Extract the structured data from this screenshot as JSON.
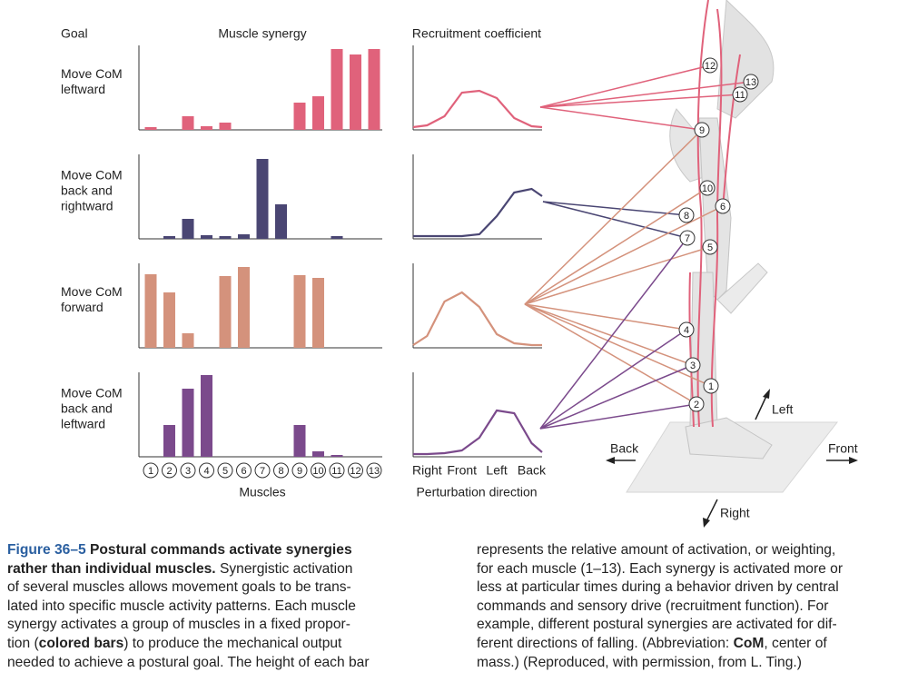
{
  "header": {
    "goal": "Goal",
    "synergy": "Muscle synergy"
  },
  "chart_data": [
    {
      "type": "bar",
      "title": [
        "Move CoM",
        "leftward"
      ],
      "color": "#e0627b",
      "values": [
        3,
        0,
        15,
        4,
        8,
        0,
        0,
        0,
        30,
        37,
        89,
        83,
        89
      ]
    },
    {
      "type": "bar",
      "title": [
        "Move CoM",
        "back and",
        "rightward"
      ],
      "color": "#4a4673",
      "values": [
        0,
        3,
        22,
        4,
        3,
        5,
        88,
        38,
        0,
        0,
        3,
        0,
        0
      ]
    },
    {
      "type": "bar",
      "title": [
        "Move CoM",
        "forward"
      ],
      "color": "#d4927c",
      "values": [
        81,
        61,
        16,
        0,
        79,
        89,
        0,
        0,
        80,
        77,
        0,
        0,
        0
      ]
    },
    {
      "type": "bar",
      "title": [
        "Move CoM",
        "back and",
        "leftward"
      ],
      "color": "#7b4a8c",
      "values": [
        0,
        35,
        75,
        90,
        0,
        0,
        0,
        0,
        35,
        6,
        2,
        0,
        0
      ],
      "categories": [
        "1",
        "2",
        "3",
        "4",
        "5",
        "6",
        "7",
        "8",
        "9",
        "10",
        "11",
        "12",
        "13"
      ],
      "xlabel": "Muscles"
    },
    {
      "type": "line",
      "title": "Recruitment coefficient",
      "xlabel": "Perturbation direction",
      "x": [
        -0.4,
        0,
        0.5,
        1,
        1.5,
        2,
        2.5,
        3,
        3.3
      ],
      "xlim": [
        -0.4,
        3.3
      ],
      "xticks": [
        {
          "value": 0,
          "label": "Right"
        },
        {
          "value": 1,
          "label": "Front"
        },
        {
          "value": 2,
          "label": "Left"
        },
        {
          "value": 3,
          "label": "Back"
        }
      ],
      "series": [
        {
          "color": "#e0627b",
          "values": [
            0,
            2,
            12,
            38,
            40,
            32,
            10,
            1,
            0
          ]
        },
        {
          "color": "#4a4673",
          "values": [
            0,
            0,
            0,
            0,
            2,
            22,
            48,
            52,
            44
          ]
        },
        {
          "color": "#d4927c",
          "values": [
            0,
            10,
            48,
            58,
            42,
            12,
            2,
            0,
            0
          ]
        },
        {
          "color": "#7b4a8c",
          "values": [
            0,
            0,
            1,
            4,
            18,
            48,
            45,
            12,
            2
          ]
        }
      ]
    }
  ],
  "skeleton": {
    "labels": [
      "12",
      "13",
      "11",
      "9",
      "10",
      "6",
      "8",
      "7",
      "5",
      "4",
      "3",
      "1",
      "2"
    ],
    "left": "Left",
    "back": "Back",
    "front": "Front",
    "right": "Right"
  },
  "caption": {
    "columns": [
      [
        [
          {
            "t": "Figure 36–5",
            "s": "figure-label"
          },
          {
            "t": " Postural commands activate synergies",
            "s": "bold"
          }
        ],
        [
          {
            "t": "rather than individual muscles.",
            "s": "bold"
          },
          {
            "t": " Synergistic activation"
          }
        ],
        [
          {
            "t": "of several muscles allows movement goals to be trans-"
          }
        ],
        [
          {
            "t": "lated into specific muscle activity patterns. Each muscle"
          }
        ],
        [
          {
            "t": "synergy activates a group of muscles in a fixed propor-"
          }
        ],
        [
          {
            "t": "tion ("
          },
          {
            "t": "colored bars",
            "s": "bold"
          },
          {
            "t": ") to produce the mechanical output"
          }
        ],
        [
          {
            "t": "needed to achieve a postural goal. The height of each bar"
          }
        ]
      ],
      [
        [
          {
            "t": "represents the relative amount of activation, or weighting,"
          }
        ],
        [
          {
            "t": "for each muscle (1–13). Each synergy is activated more or"
          }
        ],
        [
          {
            "t": "less at particular times during a behavior driven by central"
          }
        ],
        [
          {
            "t": "commands and sensory drive (recruitment function). For"
          }
        ],
        [
          {
            "t": "example, different postural synergies are activated for dif-"
          }
        ],
        [
          {
            "t": "ferent directions of falling. (Abbreviation: "
          },
          {
            "t": "CoM",
            "s": "bold"
          },
          {
            "t": ", center of"
          }
        ],
        [
          {
            "t": "mass.) (Reproduced, with permission, from L. Ting.)"
          }
        ]
      ]
    ]
  }
}
